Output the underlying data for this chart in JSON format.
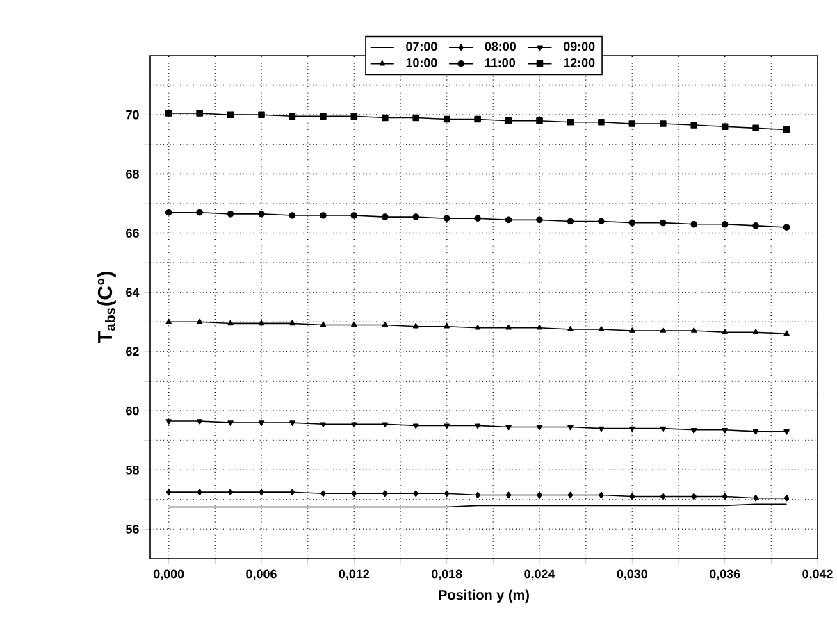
{
  "chart_data": {
    "type": "line",
    "xlabel": "Position y (m)",
    "ylabel": "T$_{abs}$(C°)",
    "x": [
      0,
      0.002,
      0.004,
      0.006,
      0.008,
      0.01,
      0.012,
      0.014,
      0.016,
      0.018,
      0.02,
      0.022,
      0.024,
      0.026,
      0.028,
      0.03,
      0.032,
      0.034,
      0.036,
      0.038,
      0.04
    ],
    "series": [
      {
        "name": "07:00",
        "color": "#000000",
        "marker": "none",
        "values": [
          56.75,
          56.75,
          56.75,
          56.75,
          56.75,
          56.75,
          56.75,
          56.75,
          56.75,
          56.75,
          56.8,
          56.8,
          56.8,
          56.8,
          56.8,
          56.8,
          56.8,
          56.8,
          56.8,
          56.85,
          56.85
        ]
      },
      {
        "name": "08:00",
        "color": "#000000",
        "marker": "diamond",
        "values": [
          57.25,
          57.25,
          57.25,
          57.25,
          57.25,
          57.2,
          57.2,
          57.2,
          57.2,
          57.2,
          57.15,
          57.15,
          57.15,
          57.15,
          57.15,
          57.1,
          57.1,
          57.1,
          57.1,
          57.05,
          57.05
        ]
      },
      {
        "name": "09:00",
        "color": "#000000",
        "marker": "triangle-down",
        "values": [
          59.65,
          59.65,
          59.6,
          59.6,
          59.6,
          59.55,
          59.55,
          59.55,
          59.5,
          59.5,
          59.5,
          59.45,
          59.45,
          59.45,
          59.4,
          59.4,
          59.4,
          59.35,
          59.35,
          59.3,
          59.3
        ]
      },
      {
        "name": "10:00",
        "color": "#000000",
        "marker": "triangle",
        "values": [
          63.0,
          63.0,
          62.95,
          62.95,
          62.95,
          62.9,
          62.9,
          62.9,
          62.85,
          62.85,
          62.8,
          62.8,
          62.8,
          62.75,
          62.75,
          62.7,
          62.7,
          62.7,
          62.65,
          62.65,
          62.6
        ]
      },
      {
        "name": "11:00",
        "color": "#000000",
        "marker": "circle",
        "values": [
          66.7,
          66.7,
          66.65,
          66.65,
          66.6,
          66.6,
          66.6,
          66.55,
          66.55,
          66.5,
          66.5,
          66.45,
          66.45,
          66.4,
          66.4,
          66.35,
          66.35,
          66.3,
          66.3,
          66.25,
          66.2
        ]
      },
      {
        "name": "12:00",
        "color": "#000000",
        "marker": "square",
        "values": [
          70.05,
          70.05,
          70.0,
          70.0,
          69.95,
          69.95,
          69.95,
          69.9,
          69.9,
          69.85,
          69.85,
          69.8,
          69.8,
          69.75,
          69.75,
          69.7,
          69.7,
          69.65,
          69.6,
          69.55,
          69.5
        ]
      }
    ],
    "xlim": [
      -0.0012,
      0.042
    ],
    "ylim": [
      55,
      72
    ],
    "xticks": [
      {
        "value": 0,
        "label": "0,000"
      },
      {
        "value": 0.003,
        "label": null
      },
      {
        "value": 0.006,
        "label": "0,006"
      },
      {
        "value": 0.009,
        "label": null
      },
      {
        "value": 0.012,
        "label": "0,012"
      },
      {
        "value": 0.015,
        "label": null
      },
      {
        "value": 0.018,
        "label": "0,018"
      },
      {
        "value": 0.021,
        "label": null
      },
      {
        "value": 0.024,
        "label": "0,024"
      },
      {
        "value": 0.027,
        "label": null
      },
      {
        "value": 0.03,
        "label": "0,030"
      },
      {
        "value": 0.033,
        "label": null
      },
      {
        "value": 0.036,
        "label": "0,036"
      },
      {
        "value": 0.039,
        "label": null
      },
      {
        "value": 0.042,
        "label": "0,042"
      }
    ],
    "yticks": [
      56,
      {
        "value": 57,
        "label": null
      },
      58,
      {
        "value": 59,
        "label": null
      },
      60,
      {
        "value": 61,
        "label": null
      },
      62,
      {
        "value": 63,
        "label": null
      },
      64,
      {
        "value": 65,
        "label": null
      },
      66,
      {
        "value": 67,
        "label": null
      },
      68,
      {
        "value": 69,
        "label": null
      },
      70,
      {
        "value": 71,
        "label": null
      }
    ],
    "grid": true,
    "legend": "top",
    "line_style": "solid"
  }
}
